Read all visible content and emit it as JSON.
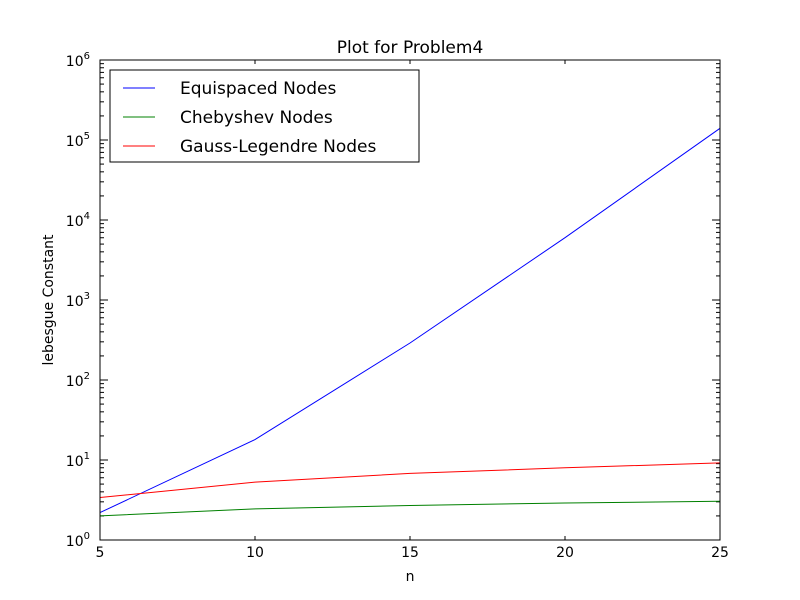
{
  "chart_data": {
    "type": "line",
    "title": "Plot for Problem4",
    "xlabel": "n",
    "ylabel": "lebesgue Constant",
    "xlim": [
      5,
      25
    ],
    "ylim": [
      1,
      1000000
    ],
    "yscale": "log",
    "grid": false,
    "legend_position": "top-left",
    "x_ticks": [
      {
        "value": 5,
        "label": "5"
      },
      {
        "value": 10,
        "label": "10"
      },
      {
        "value": 15,
        "label": "15"
      },
      {
        "value": 20,
        "label": "20"
      },
      {
        "value": 25,
        "label": "25"
      }
    ],
    "y_ticks": [
      {
        "value": 1,
        "base": "10",
        "exp": "0"
      },
      {
        "value": 10,
        "base": "10",
        "exp": "1"
      },
      {
        "value": 100,
        "base": "10",
        "exp": "2"
      },
      {
        "value": 1000,
        "base": "10",
        "exp": "3"
      },
      {
        "value": 10000,
        "base": "10",
        "exp": "4"
      },
      {
        "value": 100000,
        "base": "10",
        "exp": "5"
      },
      {
        "value": 1000000,
        "base": "10",
        "exp": "6"
      }
    ],
    "x": [
      5,
      10,
      15,
      20,
      25
    ],
    "series": [
      {
        "name": "Equispaced Nodes",
        "color": "#0000ff",
        "values": [
          2.2,
          18,
          290,
          6000,
          140000
        ]
      },
      {
        "name": "Chebyshev Nodes",
        "color": "#008000",
        "values": [
          2.0,
          2.45,
          2.7,
          2.9,
          3.05
        ]
      },
      {
        "name": "Gauss-Legendre Nodes",
        "color": "#ff0000",
        "values": [
          3.4,
          5.3,
          6.8,
          8.0,
          9.2
        ]
      }
    ]
  }
}
